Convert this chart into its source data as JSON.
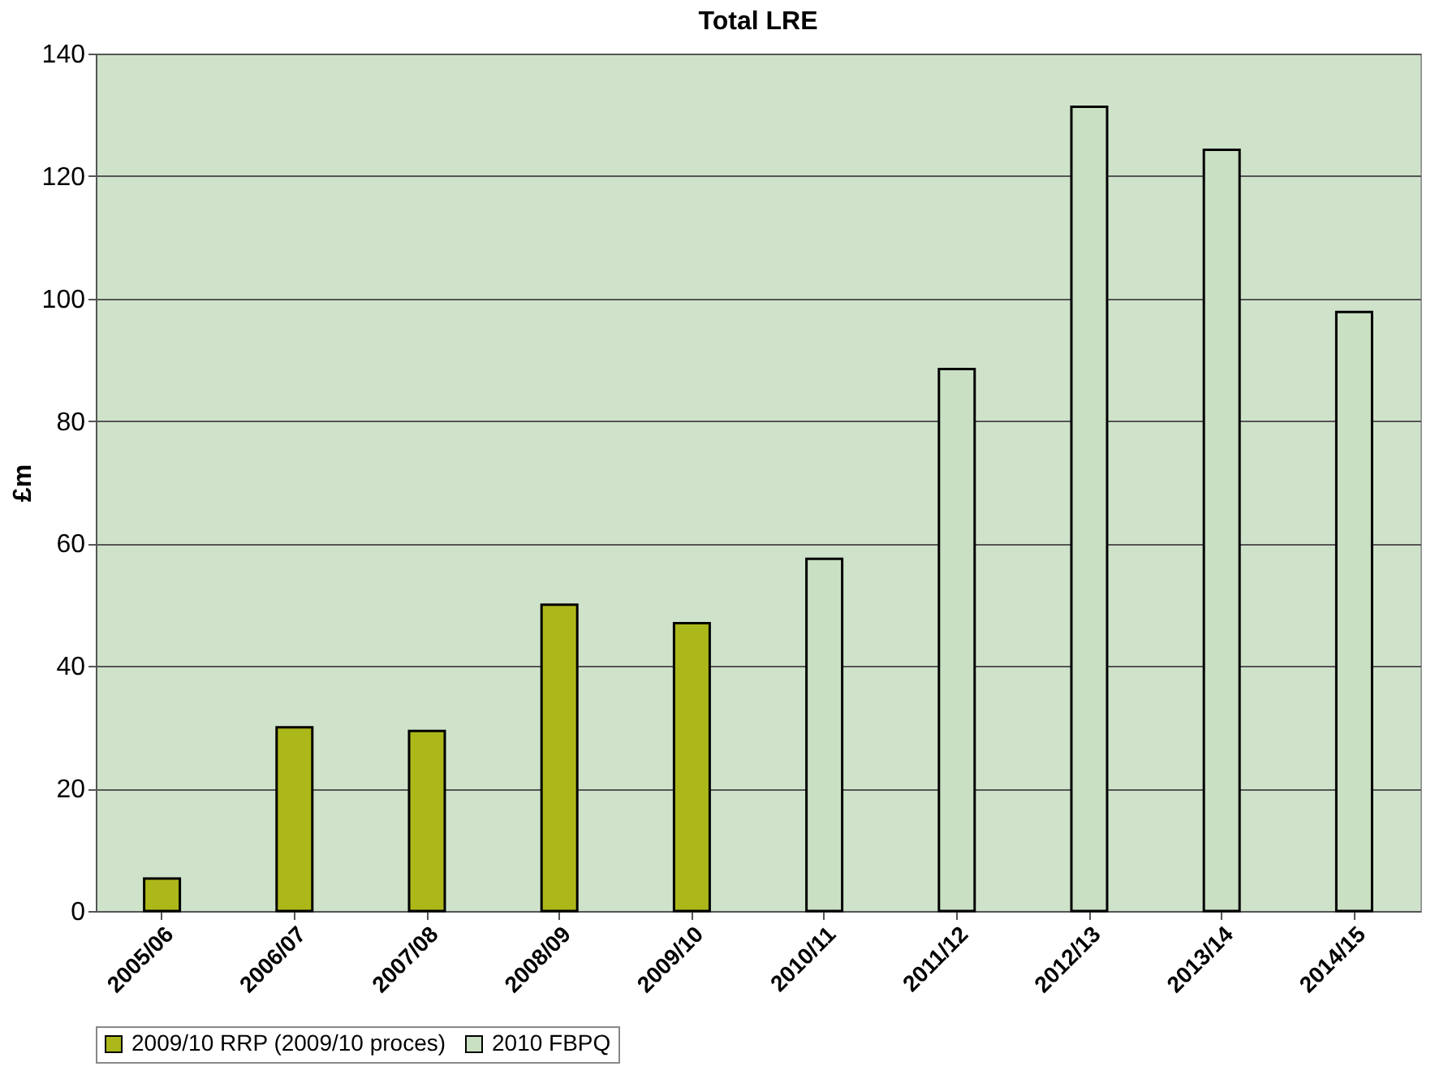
{
  "chart_data": {
    "type": "bar",
    "title": "Total LRE",
    "ylabel": "£m",
    "categories": [
      "2005/06",
      "2006/07",
      "2007/08",
      "2008/09",
      "2009/10",
      "2010/11",
      "2011/12",
      "2012/13",
      "2013/14",
      "2014/15"
    ],
    "series": [
      {
        "name": "2009/10 RRP (2009/10 proces)",
        "color": "#acb81a",
        "values": [
          5.3,
          30,
          29.4,
          50,
          47,
          null,
          null,
          null,
          null,
          null
        ]
      },
      {
        "name": "2010 FBPQ",
        "color": "#c9e0c3",
        "values": [
          null,
          null,
          null,
          null,
          null,
          57.5,
          88.5,
          131.3,
          124.3,
          97.8
        ]
      }
    ],
    "ylim": [
      0,
      140
    ],
    "yticks": [
      0,
      20,
      40,
      60,
      80,
      100,
      120,
      140
    ],
    "grid": "y",
    "legend": "bottom"
  }
}
